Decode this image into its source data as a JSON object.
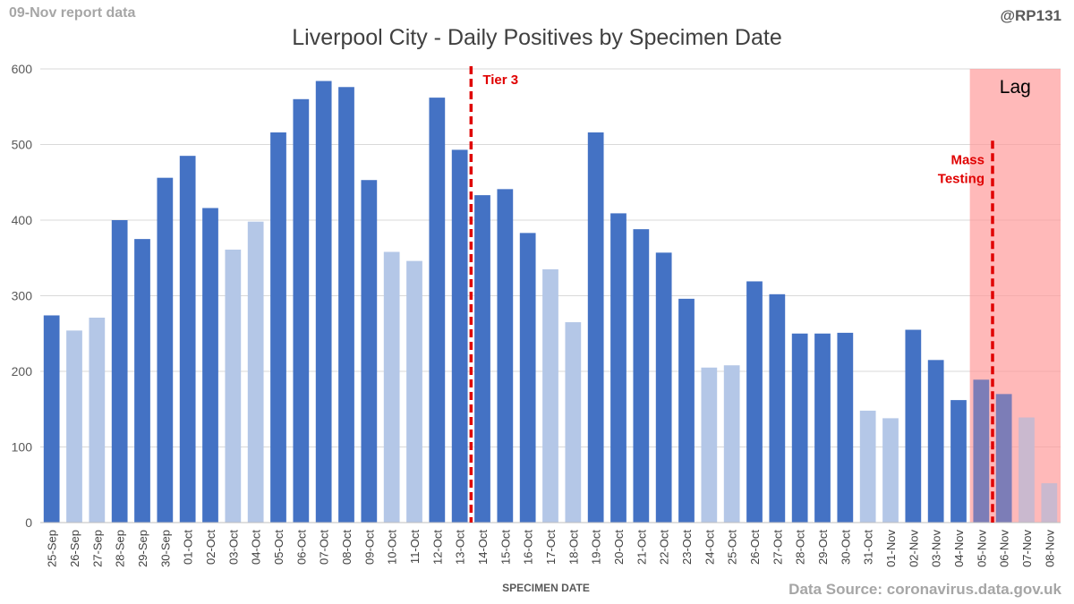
{
  "header": {
    "report_date": "09-Nov report data",
    "handle": "@RP131",
    "title": "Liverpool City - Daily Positives by Specimen Date"
  },
  "footer": {
    "source": "Data Source: coronavirus.data.gov.uk"
  },
  "colors": {
    "weekday_bar": "#4472c4",
    "weekend_bar": "#b4c7e7",
    "lag_shade": "#ff9999",
    "marker_line": "#e00000",
    "grid": "#d9d9d9"
  },
  "chart_data": {
    "type": "bar",
    "title": "Liverpool City - Daily Positives by Specimen Date",
    "xlabel": "SPECIMEN DATE",
    "ylabel": "",
    "ylim": [
      0,
      600
    ],
    "yticks": [
      0,
      100,
      200,
      300,
      400,
      500,
      600
    ],
    "grid": true,
    "categories": [
      "25-Sep",
      "26-Sep",
      "27-Sep",
      "28-Sep",
      "29-Sep",
      "30-Sep",
      "01-Oct",
      "02-Oct",
      "03-Oct",
      "04-Oct",
      "05-Oct",
      "06-Oct",
      "07-Oct",
      "08-Oct",
      "09-Oct",
      "10-Oct",
      "11-Oct",
      "12-Oct",
      "13-Oct",
      "14-Oct",
      "15-Oct",
      "16-Oct",
      "17-Oct",
      "18-Oct",
      "19-Oct",
      "20-Oct",
      "21-Oct",
      "22-Oct",
      "23-Oct",
      "24-Oct",
      "25-Oct",
      "26-Oct",
      "27-Oct",
      "28-Oct",
      "29-Oct",
      "30-Oct",
      "31-Oct",
      "01-Nov",
      "02-Nov",
      "03-Nov",
      "04-Nov",
      "05-Nov",
      "06-Nov",
      "07-Nov",
      "08-Nov"
    ],
    "values": [
      274,
      254,
      271,
      400,
      375,
      456,
      485,
      416,
      361,
      398,
      516,
      560,
      584,
      576,
      453,
      358,
      346,
      562,
      493,
      433,
      441,
      383,
      335,
      265,
      516,
      409,
      388,
      357,
      296,
      205,
      208,
      319,
      302,
      250,
      250,
      251,
      148,
      138,
      255,
      215,
      162,
      189,
      170,
      139,
      52
    ],
    "weekend": [
      false,
      true,
      true,
      false,
      false,
      false,
      false,
      false,
      true,
      true,
      false,
      false,
      false,
      false,
      false,
      true,
      true,
      false,
      false,
      false,
      false,
      false,
      true,
      true,
      false,
      false,
      false,
      false,
      false,
      true,
      true,
      false,
      false,
      false,
      false,
      false,
      true,
      true,
      false,
      false,
      false,
      false,
      false,
      true,
      true
    ],
    "annotations": [
      {
        "label": "Tier 3",
        "between": [
          "13-Oct",
          "14-Oct"
        ],
        "style": "dashed-red-line"
      },
      {
        "label_lines": [
          "Mass",
          "Testing"
        ],
        "between": [
          "05-Nov",
          "06-Nov"
        ],
        "style": "dashed-red-line"
      }
    ],
    "shaded_region": {
      "label": "Lag",
      "from": "05-Nov",
      "to": "08-Nov"
    }
  }
}
